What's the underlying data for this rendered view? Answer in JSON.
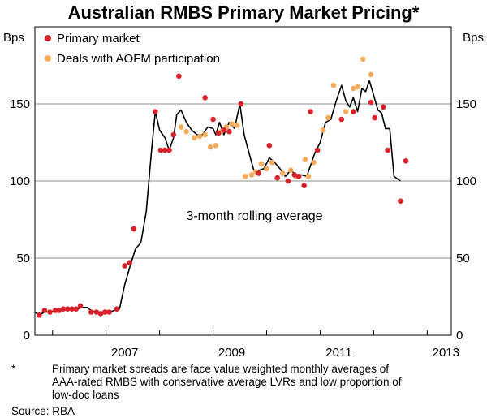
{
  "chart_data": {
    "type": "scatter",
    "title": "Australian RMBS Primary Market Pricing*",
    "ylabel_left": "Bps",
    "ylabel_right": "Bps",
    "ylim": [
      0,
      200
    ],
    "yticks": [
      0,
      50,
      100,
      150
    ],
    "xlim": [
      2005.67,
      2013.45
    ],
    "xticks": [
      2007,
      2009,
      2011,
      2013
    ],
    "x_minor_ticks": [
      2006,
      2007,
      2008,
      2009,
      2010,
      2011,
      2012,
      2013
    ],
    "grid": true,
    "legend_position": "top-left",
    "series": [
      {
        "name": "Primary market",
        "kind": "scatter",
        "color": "#d7222b",
        "points": [
          [
            2005.75,
            13
          ],
          [
            2005.85,
            16
          ],
          [
            2005.95,
            15
          ],
          [
            2006.05,
            16
          ],
          [
            2006.12,
            16
          ],
          [
            2006.2,
            17
          ],
          [
            2006.28,
            17
          ],
          [
            2006.36,
            17
          ],
          [
            2006.44,
            17
          ],
          [
            2006.52,
            19
          ],
          [
            2006.72,
            15
          ],
          [
            2006.82,
            15
          ],
          [
            2006.9,
            14
          ],
          [
            2006.98,
            15
          ],
          [
            2007.06,
            15
          ],
          [
            2007.2,
            17
          ],
          [
            2007.35,
            45
          ],
          [
            2007.44,
            47
          ],
          [
            2007.52,
            69
          ],
          [
            2007.92,
            145
          ],
          [
            2008.02,
            120
          ],
          [
            2008.1,
            120
          ],
          [
            2008.18,
            120
          ],
          [
            2008.26,
            130
          ],
          [
            2008.36,
            168
          ],
          [
            2008.85,
            154
          ],
          [
            2009.0,
            140
          ],
          [
            2009.1,
            131
          ],
          [
            2009.2,
            133
          ],
          [
            2009.3,
            132
          ],
          [
            2009.52,
            150
          ],
          [
            2009.85,
            105
          ],
          [
            2010.05,
            123
          ],
          [
            2010.2,
            102
          ],
          [
            2010.4,
            100
          ],
          [
            2010.52,
            104
          ],
          [
            2010.6,
            103
          ],
          [
            2010.7,
            97
          ],
          [
            2010.82,
            145
          ],
          [
            2010.95,
            120
          ],
          [
            2011.4,
            140
          ],
          [
            2011.62,
            145
          ],
          [
            2011.95,
            151
          ],
          [
            2012.02,
            141
          ],
          [
            2012.18,
            148
          ],
          [
            2012.26,
            120
          ],
          [
            2012.5,
            87
          ],
          [
            2012.6,
            113
          ]
        ]
      },
      {
        "name": "Deals with AOFM participation",
        "kind": "scatter",
        "color": "#f6ac5d",
        "points": [
          [
            2008.4,
            135
          ],
          [
            2008.5,
            132
          ],
          [
            2008.65,
            128
          ],
          [
            2008.75,
            129
          ],
          [
            2008.85,
            130
          ],
          [
            2008.95,
            122
          ],
          [
            2009.05,
            123
          ],
          [
            2009.15,
            132
          ],
          [
            2009.25,
            135
          ],
          [
            2009.35,
            137
          ],
          [
            2009.45,
            136
          ],
          [
            2009.6,
            103
          ],
          [
            2009.72,
            104
          ],
          [
            2009.8,
            106
          ],
          [
            2009.9,
            111
          ],
          [
            2010.0,
            108
          ],
          [
            2010.1,
            112
          ],
          [
            2010.3,
            105
          ],
          [
            2010.45,
            107
          ],
          [
            2010.55,
            103
          ],
          [
            2010.72,
            114
          ],
          [
            2010.78,
            103
          ],
          [
            2010.88,
            112
          ],
          [
            2011.05,
            133
          ],
          [
            2011.15,
            141
          ],
          [
            2011.25,
            162
          ],
          [
            2011.48,
            145
          ],
          [
            2011.62,
            160
          ],
          [
            2011.7,
            161
          ],
          [
            2011.8,
            179
          ],
          [
            2011.95,
            169
          ]
        ]
      },
      {
        "name": "3-month rolling average",
        "kind": "line",
        "color": "#000000",
        "points": [
          [
            2005.67,
            15
          ],
          [
            2005.75,
            13
          ],
          [
            2005.85,
            15
          ],
          [
            2005.95,
            15
          ],
          [
            2006.05,
            16
          ],
          [
            2006.15,
            16
          ],
          [
            2006.25,
            17
          ],
          [
            2006.35,
            17
          ],
          [
            2006.45,
            17
          ],
          [
            2006.55,
            18
          ],
          [
            2006.65,
            18
          ],
          [
            2006.72,
            16
          ],
          [
            2006.82,
            15
          ],
          [
            2006.9,
            15
          ],
          [
            2006.98,
            15
          ],
          [
            2007.06,
            15
          ],
          [
            2007.15,
            16
          ],
          [
            2007.25,
            17
          ],
          [
            2007.35,
            33
          ],
          [
            2007.45,
            45
          ],
          [
            2007.55,
            56
          ],
          [
            2007.65,
            60
          ],
          [
            2007.75,
            80
          ],
          [
            2007.85,
            120
          ],
          [
            2007.92,
            145
          ],
          [
            2008.0,
            133
          ],
          [
            2008.1,
            128
          ],
          [
            2008.18,
            120
          ],
          [
            2008.26,
            128
          ],
          [
            2008.32,
            143
          ],
          [
            2008.4,
            146
          ],
          [
            2008.5,
            138
          ],
          [
            2008.6,
            133
          ],
          [
            2008.7,
            130
          ],
          [
            2008.8,
            130
          ],
          [
            2008.9,
            135
          ],
          [
            2009.0,
            134
          ],
          [
            2009.05,
            130
          ],
          [
            2009.12,
            138
          ],
          [
            2009.2,
            130
          ],
          [
            2009.3,
            138
          ],
          [
            2009.4,
            134
          ],
          [
            2009.5,
            150
          ],
          [
            2009.58,
            130
          ],
          [
            2009.68,
            117
          ],
          [
            2009.76,
            107
          ],
          [
            2009.86,
            107
          ],
          [
            2009.95,
            108
          ],
          [
            2010.05,
            115
          ],
          [
            2010.15,
            112
          ],
          [
            2010.25,
            108
          ],
          [
            2010.35,
            103
          ],
          [
            2010.45,
            107
          ],
          [
            2010.55,
            104
          ],
          [
            2010.65,
            104
          ],
          [
            2010.75,
            103
          ],
          [
            2010.82,
            110
          ],
          [
            2010.9,
            118
          ],
          [
            2011.0,
            125
          ],
          [
            2011.1,
            138
          ],
          [
            2011.2,
            140
          ],
          [
            2011.3,
            152
          ],
          [
            2011.4,
            162
          ],
          [
            2011.48,
            152
          ],
          [
            2011.55,
            148
          ],
          [
            2011.62,
            154
          ],
          [
            2011.7,
            145
          ],
          [
            2011.78,
            160
          ],
          [
            2011.85,
            158
          ],
          [
            2011.92,
            165
          ],
          [
            2011.98,
            158
          ],
          [
            2012.08,
            146
          ],
          [
            2012.15,
            144
          ],
          [
            2012.22,
            134
          ],
          [
            2012.3,
            134
          ],
          [
            2012.38,
            103
          ],
          [
            2012.5,
            100
          ]
        ]
      }
    ],
    "annotations": [
      {
        "text": "3-month rolling average",
        "x": 2010.0,
        "y": 78
      }
    ]
  },
  "footnote": {
    "marker": "*",
    "lines": [
      "Primary market spreads are face value weighted monthly averages of",
      "AAA-rated RMBS with conservative average LVRs and low proportion of",
      "low-doc loans"
    ],
    "source": "Source: RBA"
  }
}
